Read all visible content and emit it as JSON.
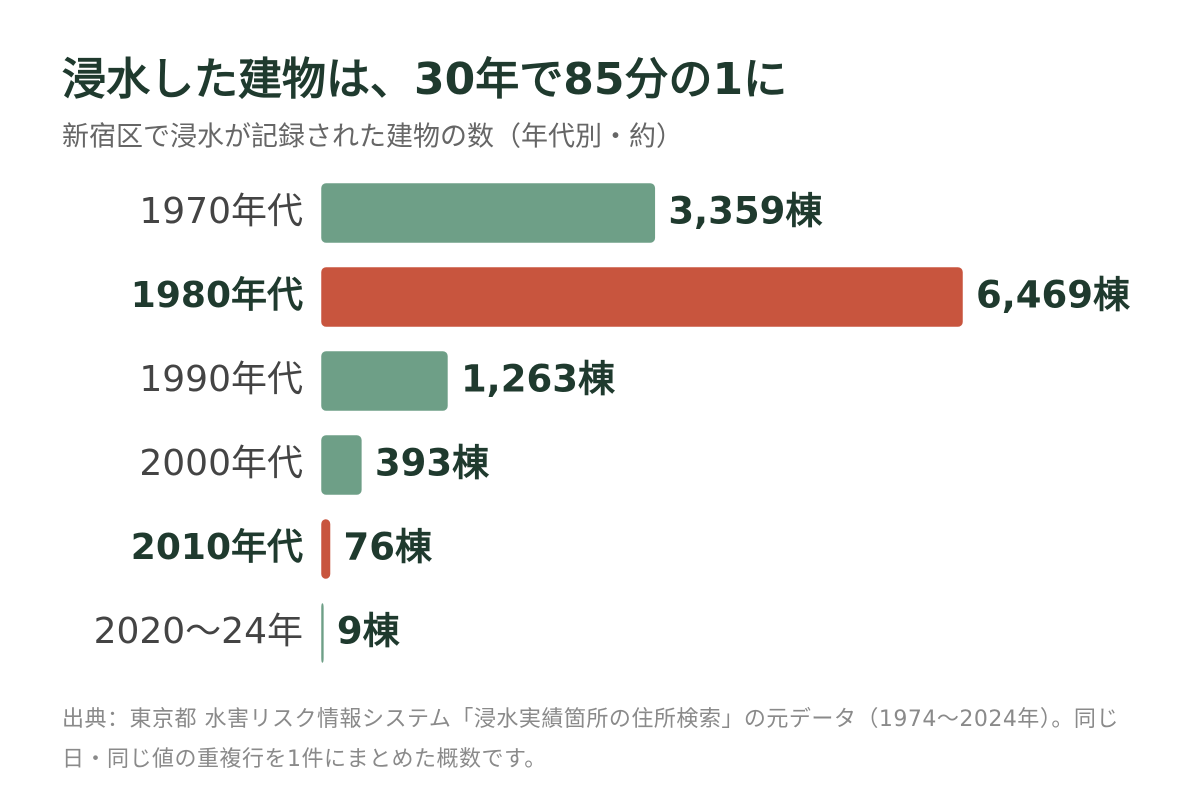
{
  "chart_data": {
    "type": "hbar",
    "title": "浸水した建物は、30年で85分の1に",
    "subtitle": "新宿区で浸水が記録された建物の数（年代別・約）",
    "categories": [
      "1970年代",
      "1980年代",
      "1990年代",
      "2000年代",
      "2010年代",
      "2020〜24年"
    ],
    "values": [
      3359,
      6469,
      1263,
      393,
      76,
      9
    ],
    "value_labels": [
      "3,359棟",
      "6,469棟",
      "1,263棟",
      "393棟",
      "76棟",
      "9棟"
    ],
    "colors": [
      "#6e9f87",
      "#c8553e",
      "#6e9f87",
      "#6e9f87",
      "#c8553e",
      "#6e9f87"
    ],
    "highlight_color": "#c8553e",
    "source": "出典：東京都 水害リスク情報システム「浸水実績箇所の住所検索」の元データ（1974〜2024年）。同じ日・同じ値の重複行を1件にまとめた概数です。"
  }
}
